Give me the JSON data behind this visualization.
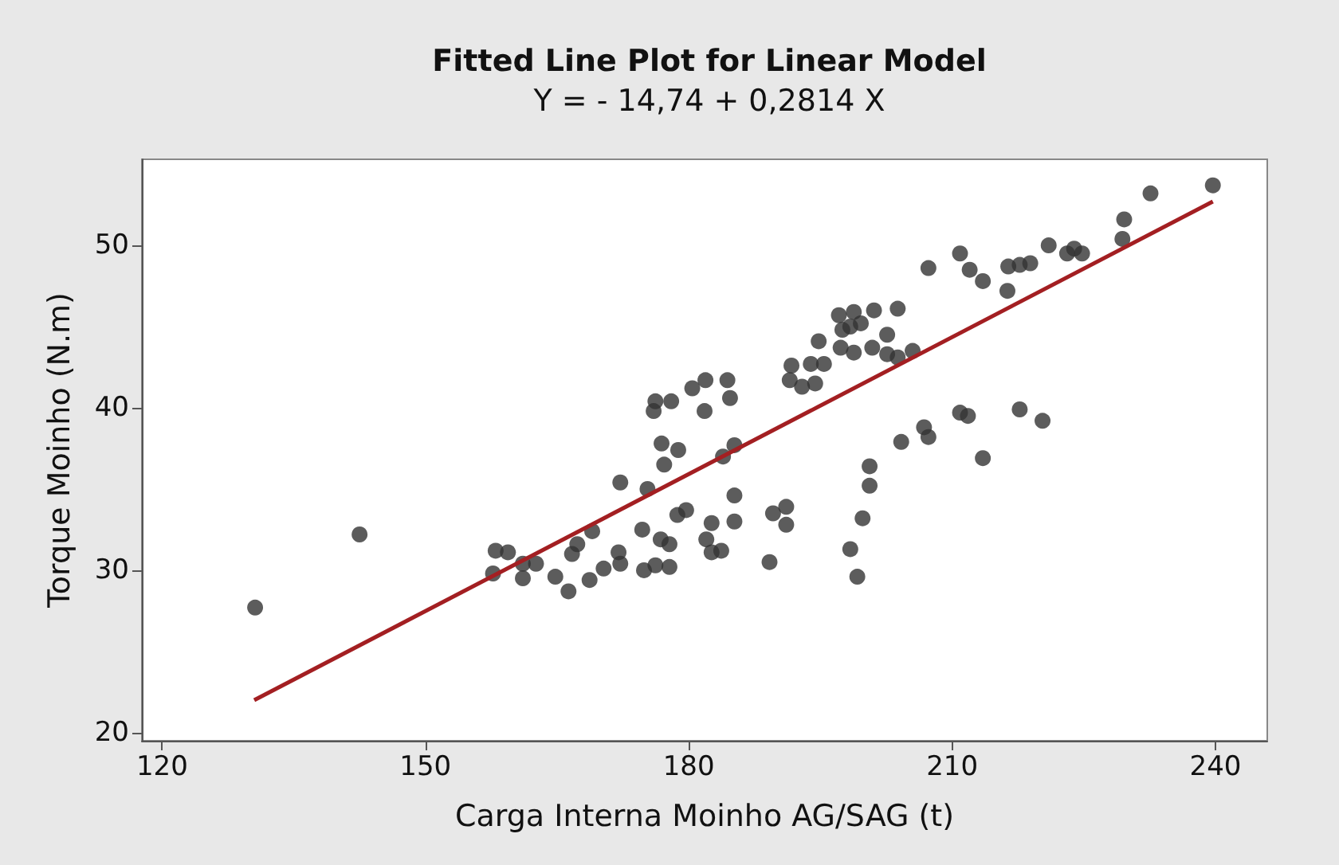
{
  "chart_data": {
    "type": "scatter",
    "title": "Fitted Line Plot for Linear Model",
    "subtitle": "Y = - 14,74 + 0,2814 X",
    "xlabel": "Carga Interna Moinho AG/SAG (t)",
    "ylabel": "Torque Moinho (N.m)",
    "xlim": [
      117.7,
      245.9
    ],
    "xticks": [
      120,
      150,
      180,
      210,
      240
    ],
    "ylim": [
      19.5,
      55.3
    ],
    "yticks": [
      20,
      30,
      40,
      50
    ],
    "marker": "circle",
    "series": [
      {
        "color": "#333333",
        "x": [
          130.6,
          142.5,
          158.0,
          159.4,
          157.7,
          161.1,
          161.1,
          162.6,
          164.8,
          166.3,
          166.7,
          167.3,
          169.0,
          168.7,
          170.3,
          172.0,
          172.2,
          172.2,
          174.7,
          174.9,
          175.3,
          176.2,
          176.8,
          177.8,
          177.8,
          176.0,
          176.2,
          178.0,
          176.9,
          177.2,
          178.8,
          178.7,
          179.7,
          180.4,
          181.9,
          181.8,
          182.0,
          182.6,
          182.6,
          183.7,
          183.9,
          184.4,
          184.7,
          185.2,
          185.2,
          185.2,
          189.2,
          189.6,
          191.1,
          191.1,
          191.7,
          191.5,
          192.9,
          194.4,
          193.9,
          195.4,
          194.8,
          197.1,
          197.3,
          198.4,
          198.8,
          199.6,
          198.8,
          201.1,
          200.9,
          202.6,
          202.6,
          203.8,
          203.8,
          205.5,
          197.5,
          198.4,
          199.2,
          199.8,
          200.6,
          200.6,
          204.2,
          206.8,
          207.3,
          207.3,
          210.9,
          210.9,
          211.8,
          212.0,
          213.5,
          213.5,
          216.3,
          216.4,
          217.7,
          218.9,
          217.7,
          220.3,
          221.0,
          223.1,
          223.9,
          224.8,
          229.4,
          229.6,
          232.6,
          239.7
        ],
        "values": [
          27.7,
          32.2,
          31.2,
          31.1,
          29.8,
          30.4,
          29.5,
          30.4,
          29.6,
          28.7,
          31.0,
          31.6,
          32.4,
          29.4,
          30.1,
          31.1,
          30.4,
          35.4,
          32.5,
          30.0,
          35.0,
          30.3,
          31.9,
          31.6,
          30.2,
          39.8,
          40.4,
          40.4,
          37.8,
          36.5,
          37.4,
          33.4,
          33.7,
          41.2,
          41.7,
          39.8,
          31.9,
          32.9,
          31.1,
          31.2,
          37.0,
          41.7,
          40.6,
          37.7,
          34.6,
          33.0,
          30.5,
          33.5,
          33.9,
          32.8,
          42.6,
          41.7,
          41.3,
          41.5,
          42.7,
          42.7,
          44.1,
          45.7,
          43.7,
          45.0,
          45.9,
          45.2,
          43.4,
          46.0,
          43.7,
          44.5,
          43.3,
          46.1,
          43.1,
          43.5,
          44.8,
          31.3,
          29.6,
          33.2,
          35.2,
          36.4,
          37.9,
          38.8,
          38.2,
          48.6,
          49.5,
          39.7,
          39.5,
          48.5,
          47.8,
          36.9,
          47.2,
          48.7,
          48.8,
          48.9,
          39.9,
          39.2,
          50.0,
          49.5,
          49.8,
          49.5,
          50.4,
          51.6,
          53.2,
          53.7
        ]
      },
      {
        "type": "line",
        "color": "#a31f22",
        "marker": "none",
        "x": [
          130.5,
          239.7
        ],
        "values": [
          22.0,
          52.7
        ]
      }
    ]
  }
}
